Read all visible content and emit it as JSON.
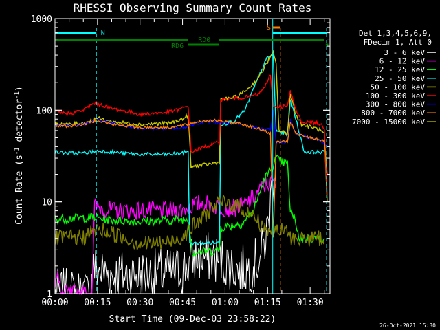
{
  "chart_data": {
    "type": "line",
    "title": "RHESSI Observing Summary Count Rates",
    "xlabel": "Start Time (09-Dec-03 23:58:22)",
    "ylabel": "Count Rate (s",
    "ylabel_sup": "-1",
    "ylabel_rest": " detector",
    "ylabel_close": ")",
    "x_ticks": [
      "00:00",
      "00:15",
      "00:30",
      "00:45",
      "01:00",
      "01:15",
      "01:30"
    ],
    "y_ticks": [
      "1",
      "10",
      "100",
      "1000"
    ],
    "xlim_minutes": [
      0,
      97
    ],
    "ylim": [
      1,
      1000
    ],
    "yscale": "log",
    "legend_placement": "right",
    "legend_header": [
      "Det 1,3,4,5,6,9,",
      "FDecim 1, Att 0"
    ],
    "timestamp": "26-Oct-2021 15:30",
    "flags": [
      {
        "label": "N",
        "color": "#00ffff"
      },
      {
        "label": "S",
        "color": "#ff8000"
      },
      {
        "label": "RD0",
        "color": "#008000"
      },
      {
        "label": "RD6",
        "color": "#008000"
      }
    ],
    "series": [
      {
        "name": "3 - 6 keV",
        "color": "#ffffff",
        "points": [
          [
            0,
            1
          ],
          [
            13,
            1
          ],
          [
            13,
            1.9
          ],
          [
            20,
            1.6
          ],
          [
            30,
            1.6
          ],
          [
            40,
            1.7
          ],
          [
            45,
            1.8
          ],
          [
            49,
            2.4
          ],
          [
            55,
            2.5
          ],
          [
            60,
            2.2
          ],
          [
            65,
            1.8
          ],
          [
            70,
            2.0
          ],
          [
            73,
            2.8
          ],
          [
            75,
            5
          ],
          [
            77,
            20
          ],
          [
            78,
            27
          ]
        ]
      },
      {
        "name": "6 - 12 keV",
        "color": "#ff00ff",
        "points": [
          [
            0,
            1.3
          ],
          [
            1,
            1.5
          ],
          [
            2,
            1
          ],
          [
            13,
            1
          ],
          [
            14,
            9
          ],
          [
            20,
            8
          ],
          [
            30,
            8
          ],
          [
            40,
            8
          ],
          [
            45,
            8.2
          ],
          [
            48,
            9
          ],
          [
            52,
            9.8
          ],
          [
            58,
            8.8
          ],
          [
            62,
            8.5
          ],
          [
            66,
            9
          ],
          [
            70,
            11
          ],
          [
            73,
            14
          ],
          [
            75,
            16
          ],
          [
            78,
            16
          ]
        ]
      },
      {
        "name": "12 - 25 keV",
        "color": "#00ff00",
        "points": [
          [
            0,
            6.5
          ],
          [
            14,
            6.8
          ],
          [
            20,
            6.3
          ],
          [
            30,
            6.1
          ],
          [
            40,
            6.3
          ],
          [
            47,
            6.5
          ],
          [
            48.5,
            2.8
          ],
          [
            58,
            3.0
          ],
          [
            58.5,
            5.3
          ],
          [
            66,
            5.8
          ],
          [
            70,
            8
          ],
          [
            72,
            12
          ],
          [
            74,
            18
          ],
          [
            76,
            22
          ],
          [
            78,
            30
          ],
          [
            79,
            28
          ],
          [
            82,
            26
          ],
          [
            83,
            8
          ],
          [
            85,
            6
          ],
          [
            86,
            4
          ],
          [
            95,
            4
          ]
        ]
      },
      {
        "name": "25 - 50 keV",
        "color": "#00ffff",
        "points": [
          [
            0,
            35
          ],
          [
            5,
            34
          ],
          [
            10,
            34
          ],
          [
            15,
            36
          ],
          [
            20,
            35
          ],
          [
            30,
            33
          ],
          [
            40,
            33
          ],
          [
            45,
            34
          ],
          [
            47,
            36
          ],
          [
            47.5,
            3.5
          ],
          [
            58,
            3.6
          ],
          [
            58.5,
            70
          ],
          [
            63,
            75
          ],
          [
            67,
            100
          ],
          [
            70,
            170
          ],
          [
            73,
            280
          ],
          [
            75,
            380
          ],
          [
            77,
            400
          ],
          [
            78,
            60
          ],
          [
            82,
            55
          ],
          [
            83,
            130
          ],
          [
            85,
            80
          ],
          [
            87,
            45
          ],
          [
            88,
            35
          ],
          [
            93,
            35
          ],
          [
            95,
            35
          ]
        ]
      },
      {
        "name": "50 - 100 keV",
        "color": "#cccc00",
        "points": [
          [
            0,
            72
          ],
          [
            5,
            70
          ],
          [
            10,
            72
          ],
          [
            15,
            82
          ],
          [
            20,
            75
          ],
          [
            30,
            70
          ],
          [
            40,
            72
          ],
          [
            45,
            80
          ],
          [
            47,
            88
          ],
          [
            48,
            24
          ],
          [
            58,
            27
          ],
          [
            58.5,
            130
          ],
          [
            64,
            140
          ],
          [
            68,
            170
          ],
          [
            72,
            230
          ],
          [
            75,
            340
          ],
          [
            77,
            420
          ],
          [
            78,
            320
          ],
          [
            79,
            60
          ],
          [
            82,
            55
          ],
          [
            83,
            150
          ],
          [
            85,
            90
          ],
          [
            87,
            70
          ],
          [
            93,
            62
          ],
          [
            95,
            55
          ],
          [
            96,
            10
          ]
        ]
      },
      {
        "name": "100 - 300 keV",
        "color": "#ff0000",
        "points": [
          [
            0,
            95
          ],
          [
            5,
            92
          ],
          [
            10,
            100
          ],
          [
            14,
            120
          ],
          [
            20,
            105
          ],
          [
            30,
            90
          ],
          [
            40,
            95
          ],
          [
            45,
            105
          ],
          [
            47,
            112
          ],
          [
            48,
            35
          ],
          [
            53,
            40
          ],
          [
            58,
            45
          ],
          [
            58.5,
            130
          ],
          [
            63,
            135
          ],
          [
            68,
            140
          ],
          [
            72,
            150
          ],
          [
            75,
            200
          ],
          [
            76,
            250
          ],
          [
            77,
            110
          ],
          [
            82,
            110
          ],
          [
            83,
            160
          ],
          [
            85,
            100
          ],
          [
            87,
            75
          ],
          [
            93,
            72
          ],
          [
            95,
            65
          ],
          [
            96,
            12
          ]
        ]
      },
      {
        "name": "300 - 800 keV",
        "color": "#0000ff",
        "points": [
          [
            0,
            70
          ],
          [
            5,
            68
          ],
          [
            10,
            70
          ],
          [
            15,
            80
          ],
          [
            20,
            72
          ],
          [
            30,
            63
          ],
          [
            40,
            63
          ],
          [
            45,
            65
          ],
          [
            47,
            67
          ],
          [
            50,
            72
          ],
          [
            55,
            75
          ],
          [
            58,
            74
          ],
          [
            65,
            70
          ],
          [
            70,
            65
          ],
          [
            74,
            62
          ],
          [
            76,
            62
          ],
          [
            77,
            100
          ],
          [
            78,
            45
          ],
          [
            82,
            45
          ],
          [
            83,
            80
          ],
          [
            85,
            55
          ],
          [
            90,
            50
          ],
          [
            95,
            45
          ],
          [
            96,
            38
          ]
        ]
      },
      {
        "name": "800 - 7000 keV",
        "color": "#ff8000",
        "points": [
          [
            0,
            68
          ],
          [
            5,
            67
          ],
          [
            10,
            70
          ],
          [
            15,
            78
          ],
          [
            20,
            70
          ],
          [
            30,
            65
          ],
          [
            40,
            65
          ],
          [
            45,
            68
          ],
          [
            47,
            70
          ],
          [
            50,
            75
          ],
          [
            55,
            78
          ],
          [
            58,
            76
          ],
          [
            65,
            72
          ],
          [
            70,
            65
          ],
          [
            74,
            60
          ],
          [
            76,
            55
          ],
          [
            77,
            4
          ],
          [
            78,
            45
          ],
          [
            82,
            45
          ],
          [
            83,
            75
          ],
          [
            85,
            55
          ],
          [
            90,
            50
          ],
          [
            95,
            47
          ],
          [
            96,
            20
          ]
        ]
      },
      {
        "name": "7000 - 15000 keV",
        "color": "#808000",
        "points": [
          [
            0,
            4
          ],
          [
            10,
            4.1
          ],
          [
            15,
            5
          ],
          [
            20,
            4.6
          ],
          [
            25,
            4
          ],
          [
            30,
            3.5
          ],
          [
            40,
            3.6
          ],
          [
            45,
            4.2
          ],
          [
            48,
            5.2
          ],
          [
            52,
            6.5
          ],
          [
            55,
            8.5
          ],
          [
            58,
            9.8
          ],
          [
            62,
            9.5
          ],
          [
            66,
            8.5
          ],
          [
            70,
            7
          ],
          [
            73,
            5.5
          ],
          [
            75,
            5
          ],
          [
            76,
            5
          ],
          [
            78,
            4.8
          ],
          [
            82,
            4.8
          ],
          [
            83,
            4
          ],
          [
            86,
            4
          ],
          [
            95,
            4
          ]
        ]
      }
    ]
  }
}
